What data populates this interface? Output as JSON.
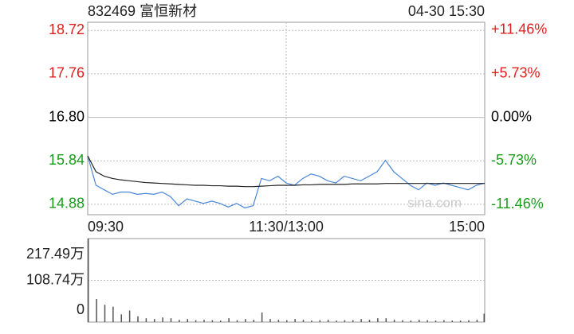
{
  "chart_data": [
    {
      "type": "line",
      "title": "832469 富恒新材",
      "subtitle": "04-30 15:30",
      "watermark": "sina.com",
      "x": [
        0,
        5,
        10,
        15,
        20,
        25,
        30,
        35,
        40,
        45,
        50,
        55,
        60,
        65,
        70,
        75,
        80,
        85,
        90,
        95,
        100,
        105,
        110,
        115,
        120,
        125,
        130,
        135,
        140,
        145,
        150,
        155,
        160,
        165,
        170,
        175,
        180,
        185,
        190,
        195,
        200,
        205,
        210,
        215,
        220,
        225,
        230,
        235,
        240
      ],
      "xlim": [
        0,
        240
      ],
      "xticks": [
        {
          "value": 0,
          "label": "09:30"
        },
        {
          "value": 120,
          "label": "11:30/13:00"
        },
        {
          "value": 240,
          "label": "15:00"
        }
      ],
      "ylim": [
        14.65,
        18.9
      ],
      "yticks": [
        14.88,
        15.84,
        {
          "value": 16.8,
          "label": "16.80"
        },
        17.76,
        18.72
      ],
      "y2lim": [
        -12.8,
        12.5
      ],
      "y2ticks": [
        {
          "value": -11.46,
          "label": "-11.46%"
        },
        {
          "value": -5.73,
          "label": "-5.73%"
        },
        {
          "value": 0,
          "label": "0.00%"
        },
        {
          "value": 5.73,
          "label": "+5.73%"
        },
        {
          "value": 11.46,
          "label": "+11.46%"
        }
      ],
      "up_color": "#e0201c",
      "down_color": "#1a9c1a",
      "flat_color": "#000000",
      "grid": true,
      "series": [
        {
          "color": "#4a86d8",
          "values": [
            15.95,
            15.3,
            15.2,
            15.1,
            15.15,
            15.15,
            15.1,
            15.12,
            15.1,
            15.15,
            15.05,
            14.85,
            15.0,
            14.95,
            14.9,
            14.95,
            14.9,
            14.82,
            14.9,
            14.8,
            14.85,
            15.45,
            15.4,
            15.5,
            15.35,
            15.3,
            15.45,
            15.55,
            15.5,
            15.4,
            15.35,
            15.5,
            15.45,
            15.4,
            15.5,
            15.6,
            15.85,
            15.6,
            15.45,
            15.3,
            15.2,
            15.35,
            15.3,
            15.35,
            15.3,
            15.25,
            15.2,
            15.3,
            15.35
          ]
        },
        {
          "color": "#222222",
          "values": [
            15.95,
            15.6,
            15.5,
            15.45,
            15.42,
            15.4,
            15.38,
            15.36,
            15.35,
            15.34,
            15.33,
            15.32,
            15.31,
            15.3,
            15.3,
            15.29,
            15.29,
            15.28,
            15.28,
            15.27,
            15.27,
            15.28,
            15.29,
            15.3,
            15.3,
            15.3,
            15.31,
            15.31,
            15.32,
            15.32,
            15.32,
            15.32,
            15.33,
            15.33,
            15.33,
            15.33,
            15.34,
            15.34,
            15.34,
            15.34,
            15.34,
            15.34,
            15.34,
            15.34,
            15.34,
            15.34,
            15.34,
            15.34,
            15.34
          ]
        }
      ]
    },
    {
      "type": "bar",
      "x": [
        0,
        5,
        10,
        15,
        20,
        25,
        30,
        35,
        40,
        45,
        50,
        55,
        60,
        65,
        70,
        75,
        80,
        85,
        90,
        95,
        100,
        105,
        110,
        115,
        120,
        125,
        130,
        135,
        140,
        145,
        150,
        155,
        160,
        165,
        170,
        175,
        180,
        185,
        190,
        195,
        200,
        205,
        210,
        215,
        220,
        225,
        230,
        235,
        240
      ],
      "xlim": [
        0,
        240
      ],
      "ylim": [
        0,
        217.49
      ],
      "yticks": [
        0,
        {
          "value": 108.745,
          "label": "108.74万"
        },
        {
          "value": 217.49,
          "label": "217.49万"
        }
      ],
      "color": "#555555",
      "values": [
        217,
        60,
        45,
        40,
        20,
        30,
        15,
        10,
        8,
        12,
        10,
        6,
        8,
        5,
        6,
        5,
        4,
        10,
        5,
        8,
        6,
        25,
        8,
        6,
        5,
        8,
        6,
        4,
        5,
        6,
        4,
        5,
        5,
        8,
        6,
        10,
        10,
        6,
        5,
        4,
        6,
        5,
        4,
        5,
        4,
        4,
        5,
        6,
        22
      ]
    }
  ]
}
